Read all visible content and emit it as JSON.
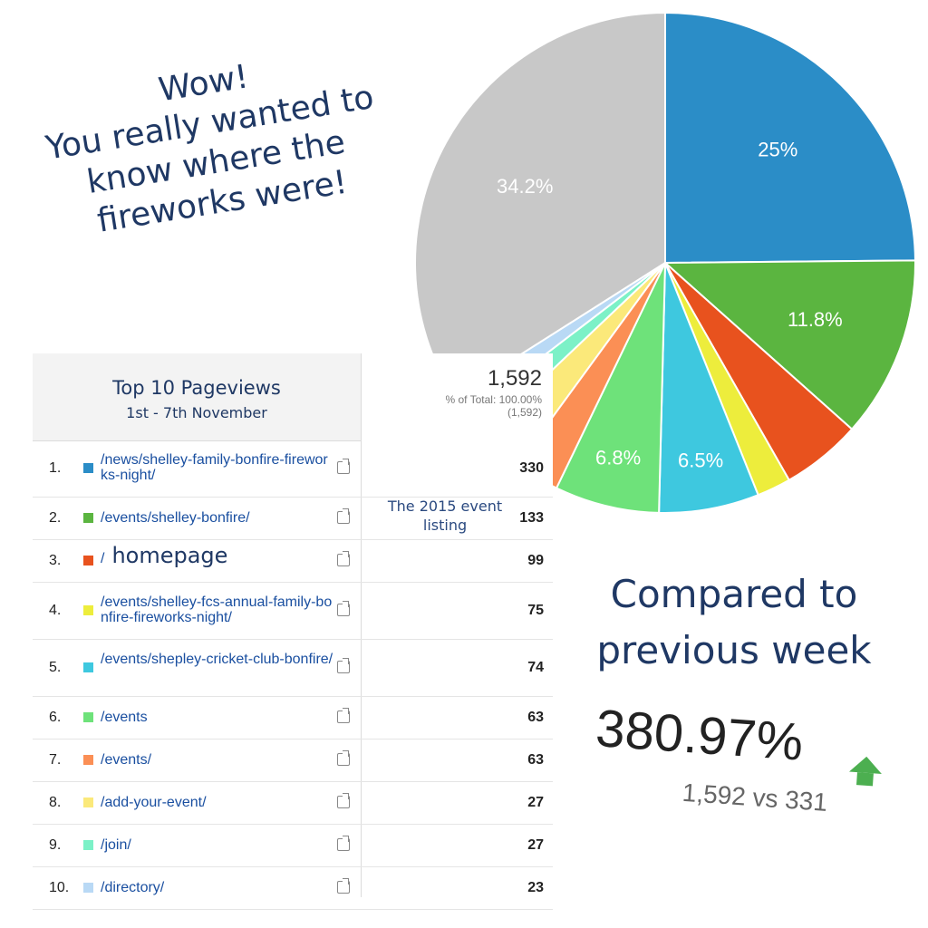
{
  "headline": [
    "Wow!",
    "You really wanted to",
    "know where the",
    "fireworks were!"
  ],
  "chart_data": {
    "type": "pie",
    "slices": [
      {
        "label": "25%",
        "value": 25.0,
        "color": "#2b8dc7"
      },
      {
        "label": "11.8%",
        "value": 11.8,
        "color": "#5bb540"
      },
      {
        "label": "",
        "value": 5.2,
        "color": "#e8521e"
      },
      {
        "label": "",
        "value": 2.2,
        "color": "#eded3c"
      },
      {
        "label": "6.5%",
        "value": 6.5,
        "color": "#3ec8df"
      },
      {
        "label": "6.8%",
        "value": 6.8,
        "color": "#6ee27a"
      },
      {
        "label": "",
        "value": 2.9,
        "color": "#fb8f55"
      },
      {
        "label": "",
        "value": 2.9,
        "color": "#fbe97a"
      },
      {
        "label": "",
        "value": 1.7,
        "color": "#7cf1c7"
      },
      {
        "label": "",
        "value": 1.4,
        "color": "#b9d9f5"
      },
      {
        "label": "34.2%",
        "value": 34.2,
        "color": "#c8c8c8"
      }
    ]
  },
  "table": {
    "title": "Top 10 Pageviews",
    "subtitle": "1st - 7th November",
    "total": "1,592",
    "total_pct": "% of Total: 100.00%",
    "total_abs": "(1,592)",
    "annotation": "The 2015 event listing",
    "rows": [
      {
        "num": "1.",
        "path": "/news/shelley-family-bonfire-fireworks-night/",
        "value": "330",
        "color": "#2b8dc7"
      },
      {
        "num": "2.",
        "path": "/events/shelley-bonfire/",
        "value": "133",
        "color": "#5bb540"
      },
      {
        "num": "3.",
        "path": "/",
        "extra": "homepage",
        "value": "99",
        "color": "#e8521e"
      },
      {
        "num": "4.",
        "path": "/events/shelley-fcs-annual-family-bonfire-fireworks-night/",
        "value": "75",
        "color": "#eded3c"
      },
      {
        "num": "5.",
        "path": "/events/shepley-cricket-club-bonfire/",
        "value": "74",
        "color": "#3ec8df"
      },
      {
        "num": "6.",
        "path": "/events",
        "value": "63",
        "color": "#6ee27a"
      },
      {
        "num": "7.",
        "path": "/events/",
        "value": "63",
        "color": "#fb8f55"
      },
      {
        "num": "8.",
        "path": "/add-your-event/",
        "value": "27",
        "color": "#fbe97a"
      },
      {
        "num": "9.",
        "path": "/join/",
        "value": "27",
        "color": "#7cf1c7"
      },
      {
        "num": "10.",
        "path": "/directory/",
        "value": "23",
        "color": "#b9d9f5"
      }
    ]
  },
  "compare": [
    "Compared to",
    "previous week"
  ],
  "change": {
    "percent": "380.97%",
    "vs": "1,592 vs 331",
    "direction": "up"
  }
}
